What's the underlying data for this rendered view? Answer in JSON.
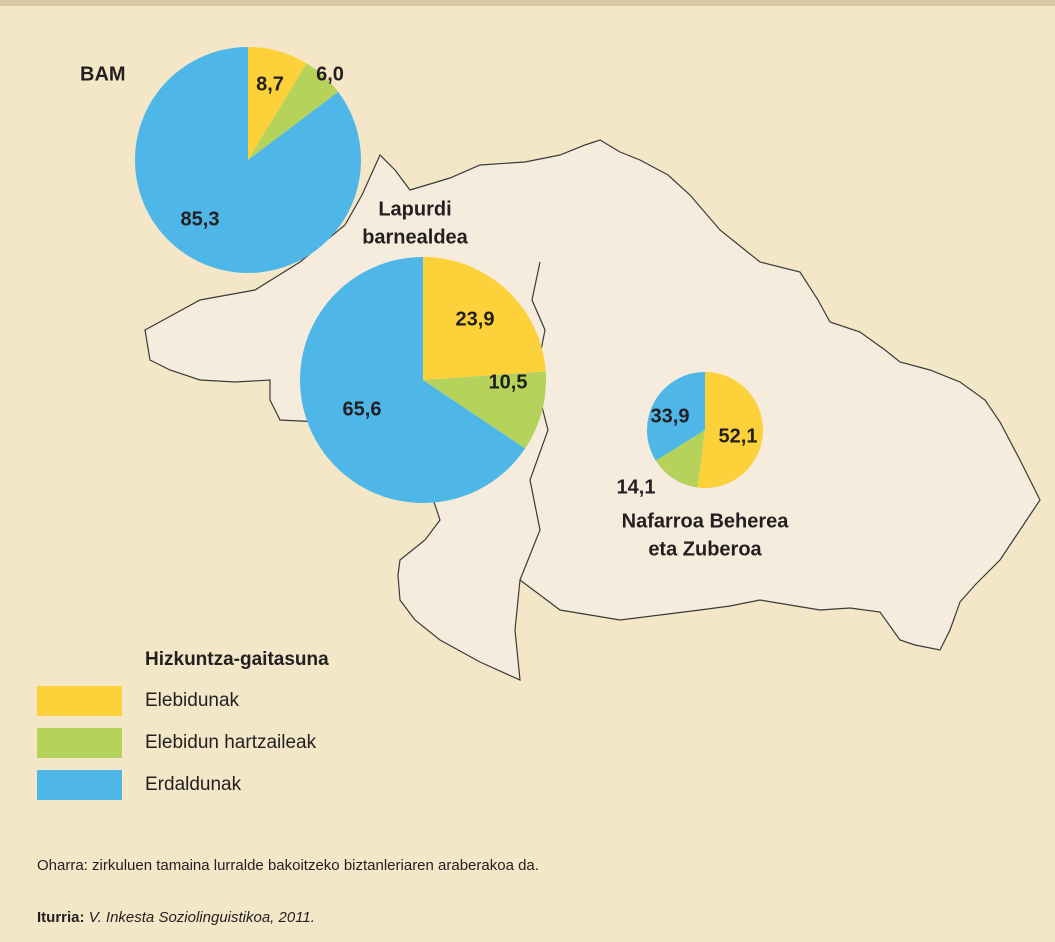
{
  "chart_data": [
    {
      "type": "pie",
      "title": [
        "BAM"
      ],
      "values": [
        8.7,
        6.0,
        85.3
      ],
      "value_labels": [
        "8,7",
        "6,0",
        "85,3"
      ]
    },
    {
      "type": "pie",
      "title": [
        "Lapurdi",
        "barnealdea"
      ],
      "values": [
        23.9,
        10.5,
        65.6
      ],
      "value_labels": [
        "23,9",
        "10,5",
        "65,6"
      ]
    },
    {
      "type": "pie",
      "title": [
        "Nafarroa Beherea",
        "eta Zuberoa"
      ],
      "values": [
        52.1,
        14.1,
        33.9
      ],
      "value_labels": [
        "52,1",
        "14,1",
        "33,9"
      ]
    }
  ],
  "legend": {
    "title": "Hizkuntza-gaitasuna",
    "categories": [
      "Elebidunak",
      "Elebidun hartzaileak",
      "Erdaldunak"
    ],
    "colors": [
      "#fdd13a",
      "#b5d25a",
      "#4eb7e8"
    ]
  },
  "note": "Oharra: zirkuluen tamaina lurralde bakoitzeko biztanleriaren araberakoa da.",
  "source": {
    "label": "Iturria:",
    "text": "V. Inkesta Soziolinguistikoa, 2011."
  }
}
